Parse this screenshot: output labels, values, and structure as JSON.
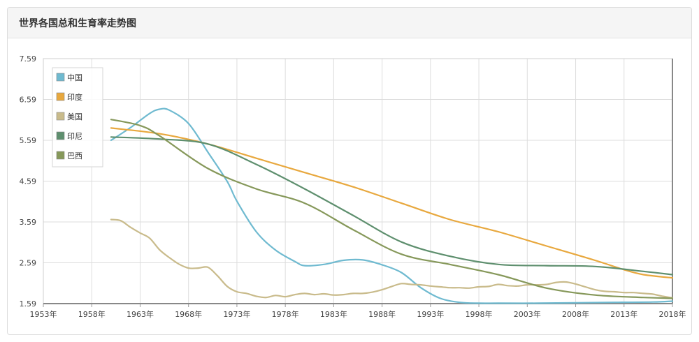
{
  "panel": {
    "title": "世界各国总和生育率走势图"
  },
  "chart_data": {
    "type": "line",
    "title": "",
    "xlabel": "",
    "ylabel": "",
    "x_tick_labels": [
      "1953年",
      "1958年",
      "1963年",
      "1968年",
      "1973年",
      "1978年",
      "1983年",
      "1988年",
      "1993年",
      "1998年",
      "2003年",
      "2008年",
      "2013年",
      "2018年"
    ],
    "y_tick_labels": [
      "1.59",
      "2.59",
      "3.59",
      "4.59",
      "5.59",
      "6.59",
      "7.59"
    ],
    "xlim": [
      1953,
      2018
    ],
    "ylim": [
      1.59,
      7.59
    ],
    "grid": true,
    "legend_position": "top-left",
    "series": [
      {
        "name": "中国",
        "color": "#6fbad0",
        "x": [
          1960,
          1962,
          1964,
          1965,
          1966,
          1968,
          1970,
          1972,
          1973,
          1975,
          1977,
          1979,
          1980,
          1982,
          1984,
          1986,
          1988,
          1990,
          1992,
          1994,
          1996,
          1998,
          2000,
          2004,
          2008,
          2012,
          2016,
          2018
        ],
        "y": [
          5.59,
          5.9,
          6.25,
          6.35,
          6.33,
          6.0,
          5.3,
          4.58,
          4.1,
          3.35,
          2.9,
          2.62,
          2.52,
          2.55,
          2.65,
          2.66,
          2.54,
          2.35,
          1.98,
          1.72,
          1.62,
          1.6,
          1.6,
          1.6,
          1.61,
          1.62,
          1.63,
          1.65
        ]
      },
      {
        "name": "印度",
        "color": "#e8a83e",
        "x": [
          1960,
          1965,
          1970,
          1975,
          1980,
          1985,
          1990,
          1995,
          2000,
          2005,
          2010,
          2013,
          2015,
          2018
        ],
        "y": [
          5.89,
          5.75,
          5.5,
          5.15,
          4.8,
          4.45,
          4.05,
          3.65,
          3.35,
          3.0,
          2.65,
          2.42,
          2.3,
          2.22
        ]
      },
      {
        "name": "美国",
        "color": "#c9bb8b",
        "x": [
          1960,
          1961,
          1962,
          1963,
          1964,
          1965,
          1966,
          1967,
          1968,
          1969,
          1970,
          1971,
          1972,
          1973,
          1974,
          1975,
          1976,
          1977,
          1978,
          1979,
          1980,
          1981,
          1982,
          1983,
          1984,
          1985,
          1986,
          1987,
          1988,
          1989,
          1990,
          1991,
          1992,
          1993,
          1994,
          1995,
          1996,
          1997,
          1998,
          1999,
          2000,
          2001,
          2002,
          2003,
          2004,
          2005,
          2006,
          2007,
          2008,
          2009,
          2010,
          2011,
          2012,
          2013,
          2014,
          2015,
          2016,
          2017,
          2018
        ],
        "y": [
          3.65,
          3.62,
          3.46,
          3.32,
          3.19,
          2.91,
          2.72,
          2.56,
          2.46,
          2.46,
          2.48,
          2.27,
          2.01,
          1.88,
          1.84,
          1.77,
          1.74,
          1.79,
          1.76,
          1.81,
          1.84,
          1.81,
          1.83,
          1.8,
          1.81,
          1.84,
          1.84,
          1.87,
          1.93,
          2.01,
          2.08,
          2.06,
          2.05,
          2.02,
          2.0,
          1.98,
          1.98,
          1.97,
          2.0,
          2.01,
          2.06,
          2.03,
          2.02,
          2.05,
          2.05,
          2.06,
          2.11,
          2.12,
          2.07,
          2.0,
          1.93,
          1.89,
          1.88,
          1.86,
          1.86,
          1.84,
          1.82,
          1.77,
          1.73
        ]
      },
      {
        "name": "印尼",
        "color": "#5e8f6e",
        "x": [
          1960,
          1965,
          1970,
          1975,
          1980,
          1985,
          1990,
          1995,
          2000,
          2005,
          2010,
          2015,
          2018
        ],
        "y": [
          5.67,
          5.62,
          5.5,
          5.0,
          4.4,
          3.75,
          3.1,
          2.75,
          2.55,
          2.52,
          2.5,
          2.38,
          2.3
        ]
      },
      {
        "name": "巴西",
        "color": "#86985a",
        "x": [
          1960,
          1963,
          1965,
          1970,
          1975,
          1980,
          1985,
          1990,
          1995,
          2000,
          2005,
          2010,
          2015,
          2018
        ],
        "y": [
          6.1,
          5.95,
          5.7,
          4.9,
          4.4,
          4.05,
          3.4,
          2.8,
          2.55,
          2.3,
          1.97,
          1.8,
          1.74,
          1.72
        ]
      }
    ]
  }
}
